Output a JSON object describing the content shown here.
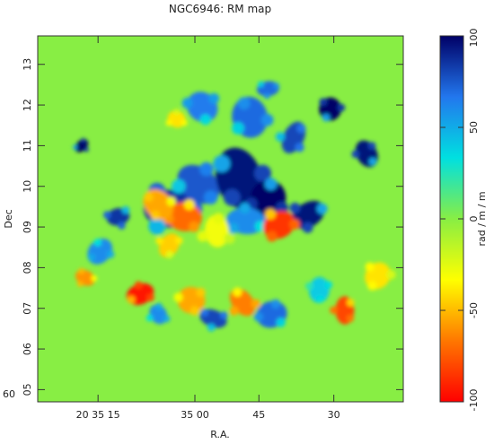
{
  "chart_data": {
    "type": "heatmap",
    "title": "NGC6946: RM map",
    "xlabel": "R.A.",
    "ylabel": "Dec",
    "y_prefix": "60",
    "x_ticks": [
      "20 35 15",
      "35 00",
      "45",
      "30"
    ],
    "y_ticks": [
      "05",
      "06",
      "07",
      "08",
      "09",
      "10",
      "11",
      "12",
      "13"
    ],
    "colorbar": {
      "label": "rad / m / m",
      "range": [
        -100,
        100
      ],
      "ticks": [
        "-100",
        "-50",
        "0",
        "50",
        "100"
      ],
      "colors": [
        "#ff0000",
        "#ff7700",
        "#ffff00",
        "#88ee44",
        "#00e0e0",
        "#2277ee",
        "#000066"
      ]
    },
    "background_value": 0,
    "blobs": [
      {
        "ra_frac": 0.36,
        "dec": 9.45,
        "size": 0.55,
        "rm": 85
      },
      {
        "ra_frac": 0.44,
        "dec": 10.05,
        "size": 0.45,
        "rm": 75
      },
      {
        "ra_frac": 0.55,
        "dec": 10.2,
        "size": 0.55,
        "rm": 95
      },
      {
        "ra_frac": 0.63,
        "dec": 9.7,
        "size": 0.4,
        "rm": 100
      },
      {
        "ra_frac": 0.74,
        "dec": 9.3,
        "size": 0.35,
        "rm": 95
      },
      {
        "ra_frac": 0.57,
        "dec": 9.15,
        "size": 0.35,
        "rm": 60
      },
      {
        "ra_frac": 0.45,
        "dec": 11.95,
        "size": 0.35,
        "rm": 65
      },
      {
        "ra_frac": 0.58,
        "dec": 11.7,
        "size": 0.4,
        "rm": 70
      },
      {
        "ra_frac": 0.7,
        "dec": 11.2,
        "size": 0.3,
        "rm": 80
      },
      {
        "ra_frac": 0.66,
        "dec": 9.05,
        "size": 0.35,
        "rm": -85
      },
      {
        "ra_frac": 0.4,
        "dec": 9.25,
        "size": 0.35,
        "rm": -70
      },
      {
        "ra_frac": 0.33,
        "dec": 9.55,
        "size": 0.3,
        "rm": -55
      },
      {
        "ra_frac": 0.49,
        "dec": 8.9,
        "size": 0.35,
        "rm": -30
      },
      {
        "ra_frac": 0.36,
        "dec": 8.55,
        "size": 0.25,
        "rm": -45
      },
      {
        "ra_frac": 0.28,
        "dec": 7.35,
        "size": 0.25,
        "rm": -95
      },
      {
        "ra_frac": 0.42,
        "dec": 7.2,
        "size": 0.3,
        "rm": -55
      },
      {
        "ra_frac": 0.56,
        "dec": 7.15,
        "size": 0.3,
        "rm": -65
      },
      {
        "ra_frac": 0.84,
        "dec": 6.95,
        "size": 0.25,
        "rm": -80
      },
      {
        "ra_frac": 0.93,
        "dec": 7.8,
        "size": 0.3,
        "rm": -40
      },
      {
        "ra_frac": 0.64,
        "dec": 6.85,
        "size": 0.3,
        "rm": 70
      },
      {
        "ra_frac": 0.48,
        "dec": 6.75,
        "size": 0.25,
        "rm": 80
      },
      {
        "ra_frac": 0.33,
        "dec": 6.85,
        "size": 0.22,
        "rm": 60
      },
      {
        "ra_frac": 0.77,
        "dec": 7.45,
        "size": 0.25,
        "rm": 40
      },
      {
        "ra_frac": 0.17,
        "dec": 8.4,
        "size": 0.25,
        "rm": 60
      },
      {
        "ra_frac": 0.22,
        "dec": 9.25,
        "size": 0.25,
        "rm": 85
      },
      {
        "ra_frac": 0.13,
        "dec": 7.75,
        "size": 0.2,
        "rm": -60
      },
      {
        "ra_frac": 0.9,
        "dec": 10.8,
        "size": 0.25,
        "rm": 95
      },
      {
        "ra_frac": 0.8,
        "dec": 11.9,
        "size": 0.25,
        "rm": 100
      },
      {
        "ra_frac": 0.12,
        "dec": 11.0,
        "size": 0.15,
        "rm": 100
      },
      {
        "ra_frac": 0.63,
        "dec": 12.4,
        "size": 0.2,
        "rm": 70
      },
      {
        "ra_frac": 0.38,
        "dec": 11.65,
        "size": 0.2,
        "rm": -40
      }
    ]
  }
}
